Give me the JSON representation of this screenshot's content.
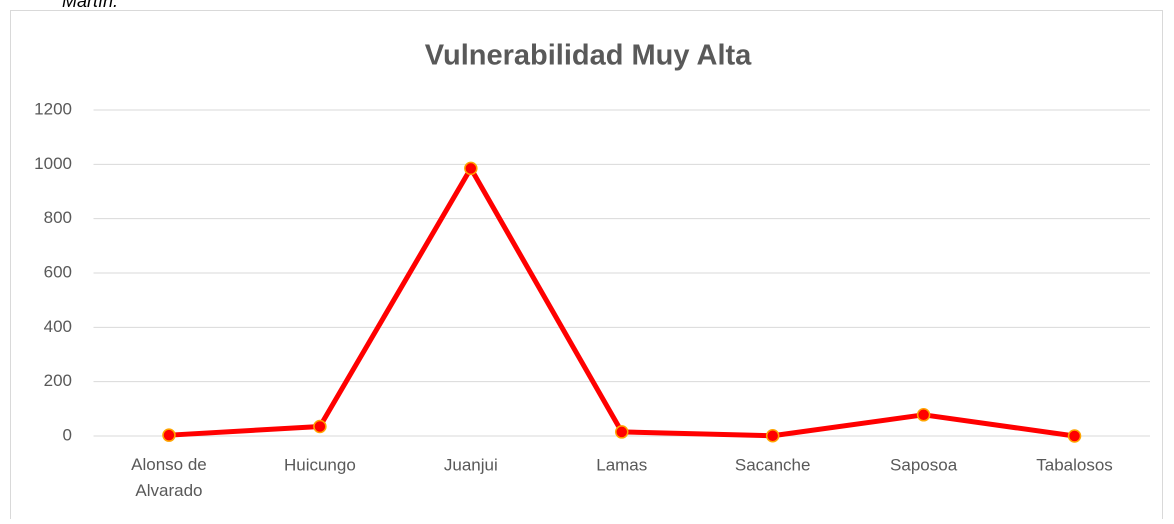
{
  "caption": "Martín.",
  "chart_data": {
    "type": "line",
    "title": "Vulnerabilidad Muy Alta",
    "categories": [
      "Alonso de Alvarado",
      "Huicungo",
      "Juanjui",
      "Lamas",
      "Sacanche",
      "Saposoa",
      "Tabalosos"
    ],
    "series": [
      {
        "name": "Vulnerabilidad Muy Alta",
        "color": "#ff0000",
        "values": [
          3,
          35,
          985,
          15,
          1,
          78,
          0
        ]
      }
    ],
    "ylim": [
      0,
      1200
    ],
    "yticks": [
      0,
      200,
      400,
      600,
      800,
      1000,
      1200
    ],
    "grid": true
  }
}
